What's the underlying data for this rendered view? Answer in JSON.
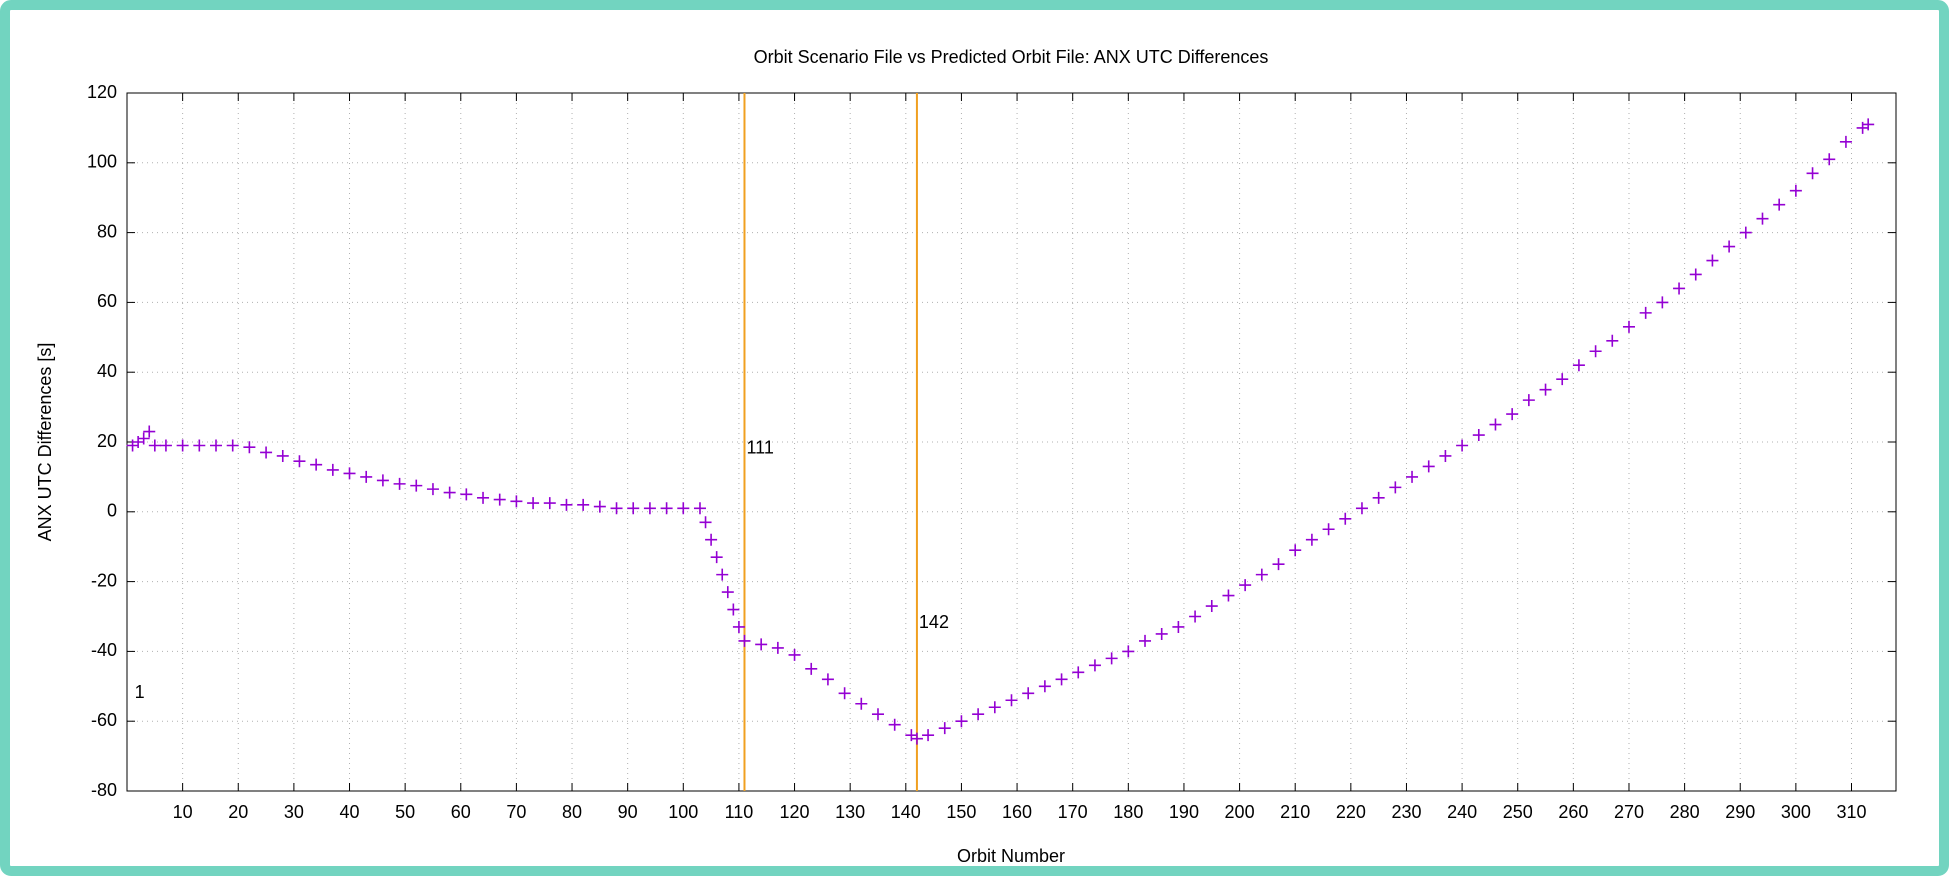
{
  "chart_data": {
    "type": "scatter",
    "title": "Orbit Scenario File vs Predicted Orbit File: ANX UTC Differences",
    "x_label": "Orbit Number",
    "y_label": "ANX UTC Differences [s]",
    "color": "#9400d3",
    "marker": "+",
    "grid": true,
    "xlim": [
      0,
      318
    ],
    "ylim": [
      -80,
      120
    ],
    "xticks": [
      10,
      20,
      30,
      40,
      50,
      60,
      70,
      80,
      90,
      100,
      110,
      120,
      130,
      140,
      150,
      160,
      170,
      180,
      190,
      200,
      210,
      220,
      230,
      240,
      250,
      260,
      270,
      280,
      290,
      300,
      310
    ],
    "yticks": [
      -80,
      -60,
      -40,
      -20,
      0,
      20,
      40,
      60,
      80,
      100,
      120
    ],
    "markers": [
      {
        "x": 1,
        "label_y": -52,
        "line": false,
        "color": "#f0a020"
      },
      {
        "x": 111,
        "label_y": 18,
        "line": true,
        "color": "#f0a020"
      },
      {
        "x": 142,
        "label_y": -32,
        "line": true,
        "color": "#f0a020"
      }
    ],
    "x": [
      1,
      2,
      3,
      4,
      5,
      7,
      10,
      13,
      16,
      19,
      22,
      25,
      28,
      31,
      34,
      37,
      40,
      43,
      46,
      49,
      52,
      55,
      58,
      61,
      64,
      67,
      70,
      73,
      76,
      79,
      82,
      85,
      88,
      91,
      94,
      97,
      100,
      103,
      104,
      105,
      106,
      107,
      108,
      109,
      110,
      111,
      114,
      117,
      120,
      123,
      126,
      129,
      132,
      135,
      138,
      141,
      142,
      144,
      147,
      150,
      153,
      156,
      159,
      162,
      165,
      168,
      171,
      174,
      177,
      180,
      183,
      186,
      189,
      192,
      195,
      198,
      201,
      204,
      207,
      210,
      213,
      216,
      219,
      222,
      225,
      228,
      231,
      234,
      237,
      240,
      243,
      246,
      249,
      252,
      255,
      258,
      261,
      264,
      267,
      270,
      273,
      276,
      279,
      282,
      285,
      288,
      291,
      294,
      297,
      300,
      303,
      306,
      309,
      312,
      313
    ],
    "values": [
      19,
      20,
      21,
      23,
      19,
      19,
      19,
      19,
      19,
      19,
      18.5,
      17,
      16,
      14.5,
      13.5,
      12,
      11,
      10,
      9,
      8,
      7.5,
      6.5,
      5.5,
      5,
      4,
      3.5,
      3,
      2.5,
      2.5,
      2,
      2,
      1.5,
      1,
      1,
      1,
      1,
      1,
      1,
      -3,
      -8,
      -13,
      -18,
      -23,
      -28,
      -33,
      -37,
      -38,
      -39,
      -41,
      -45,
      -48,
      -52,
      -55,
      -58,
      -61,
      -64,
      -65,
      -64,
      -62,
      -60,
      -58,
      -56,
      -54,
      -52,
      -50,
      -48,
      -46,
      -44,
      -42,
      -40,
      -37,
      -35,
      -33,
      -30,
      -27,
      -24,
      -21,
      -18,
      -15,
      -11,
      -8,
      -5,
      -2,
      1,
      4,
      7,
      10,
      13,
      16,
      19,
      22,
      25,
      28,
      32,
      35,
      38,
      42,
      46,
      49,
      53,
      57,
      60,
      64,
      68,
      72,
      76,
      80,
      84,
      88,
      92,
      97,
      101,
      106,
      110,
      111
    ]
  }
}
